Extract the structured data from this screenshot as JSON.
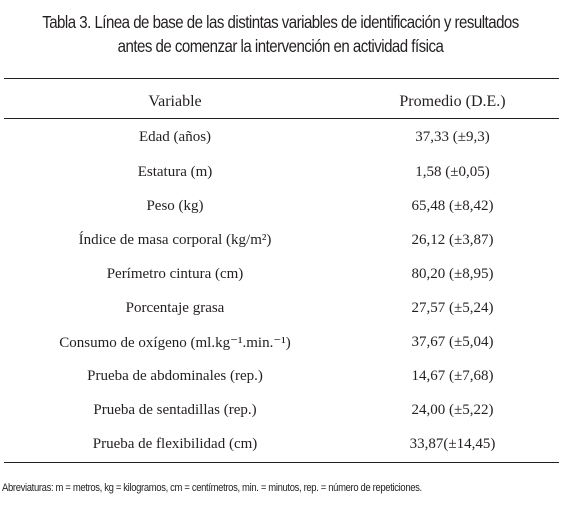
{
  "title": [
    "Tabla 3. Línea de base de las distintas variables de identificación y resultados",
    "antes de comenzar la intervención en actividad física"
  ],
  "table": {
    "header": [
      "Variable",
      "Promedio (D.E.)"
    ],
    "rows": [
      [
        "Edad (años)",
        "37,33 (±9,3)"
      ],
      [
        "Estatura (m)",
        "1,58 (±0,05)"
      ],
      [
        "Peso (kg)",
        "65,48 (±8,42)"
      ],
      [
        "Índice de masa corporal (kg/m²)",
        "26,12 (±3,87)"
      ],
      [
        "Perímetro cintura (cm)",
        "80,20 (±8,95)"
      ],
      [
        "Porcentaje grasa",
        "27,57 (±5,24)"
      ],
      [
        "Consumo de oxígeno (ml.kg⁻¹.min.⁻¹)",
        "37,67 (±5,04)"
      ],
      [
        "Prueba de abdominales (rep.)",
        "14,67 (±7,68)"
      ],
      [
        "Prueba de sentadillas (rep.)",
        "24,00 (±5,22)"
      ],
      [
        "Prueba de flexibilidad (cm)",
        "33,87(±14,45)"
      ]
    ]
  },
  "footnote": "Abreviaturas: m = metros, kg = kilogramos, cm = centímetros, min. = minutos, rep. = número de repeticiones."
}
